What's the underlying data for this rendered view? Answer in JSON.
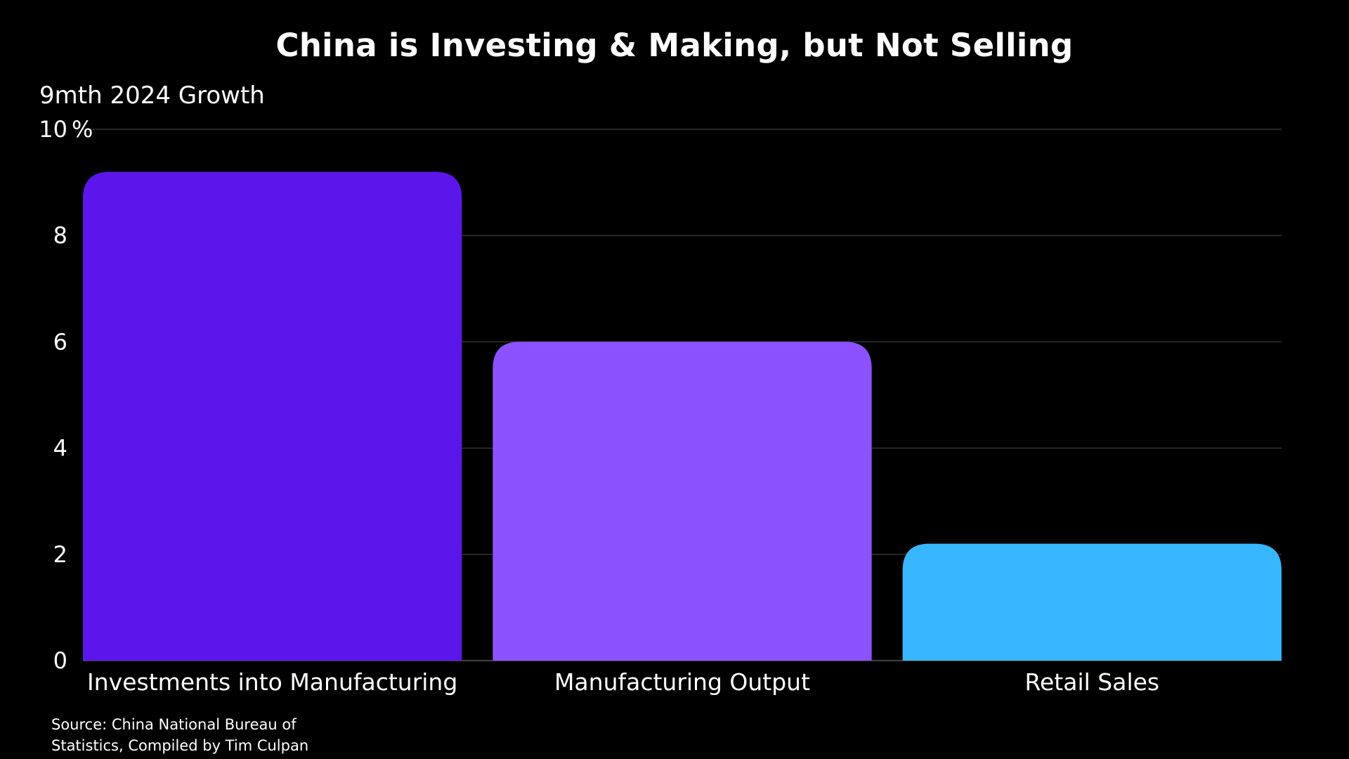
{
  "source": "Source: China National Bureau of Statistics, Compiled by Tim Culpan",
  "chart_data": {
    "type": "bar",
    "title": "China is Investing & Making, but Not Selling",
    "ylabel": "9mth 2024 Growth",
    "y_unit": "%",
    "categories": [
      "Investments into Manufacturing",
      "Manufacturing Output",
      "Retail Sales"
    ],
    "values": [
      9.2,
      6.0,
      2.2
    ],
    "colors": [
      "#5b17eb",
      "#8c52ff",
      "#38b6ff"
    ],
    "ylim": [
      0,
      10
    ],
    "yticks": [
      0,
      2,
      4,
      6,
      8,
      10
    ],
    "grid": true,
    "background": "#000000",
    "gridline_color": "#333333"
  }
}
